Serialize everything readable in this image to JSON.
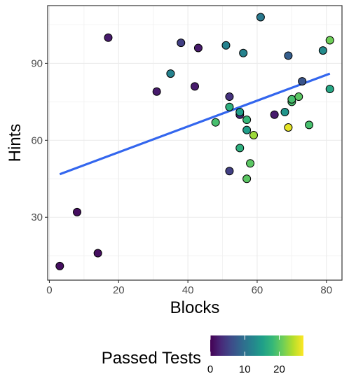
{
  "chart_data": {
    "type": "scatter",
    "xlabel": "Blocks",
    "ylabel": "Hints",
    "xlim": [
      -0.5,
      84.5
    ],
    "ylim": [
      5.5,
      112.5
    ],
    "x_ticks": [
      0,
      20,
      40,
      60,
      80
    ],
    "y_ticks": [
      30,
      60,
      90
    ],
    "grid": true,
    "color_scale": {
      "title": "Passed Tests",
      "palette": "viridis",
      "range": [
        0,
        27
      ],
      "ticks": [
        0,
        10,
        20
      ],
      "colors": [
        "#440154",
        "#482878",
        "#3e4a89",
        "#31688e",
        "#26828e",
        "#1f9e89",
        "#35b779",
        "#6ece58",
        "#b5de2b",
        "#fde725"
      ]
    },
    "trend_line": {
      "x": [
        3,
        81
      ],
      "y": [
        46.8,
        86.0
      ],
      "color": "#3366ee"
    },
    "points": [
      {
        "x": 3,
        "y": 11,
        "c": 1
      },
      {
        "x": 8,
        "y": 32,
        "c": 1
      },
      {
        "x": 14,
        "y": 16,
        "c": 1
      },
      {
        "x": 17,
        "y": 100,
        "c": 2
      },
      {
        "x": 31,
        "y": 79,
        "c": 2
      },
      {
        "x": 35,
        "y": 86,
        "c": 12
      },
      {
        "x": 38,
        "y": 98,
        "c": 5
      },
      {
        "x": 42,
        "y": 81,
        "c": 2
      },
      {
        "x": 43,
        "y": 96,
        "c": 2
      },
      {
        "x": 48,
        "y": 67,
        "c": 19
      },
      {
        "x": 51,
        "y": 97,
        "c": 12
      },
      {
        "x": 52,
        "y": 48,
        "c": 5
      },
      {
        "x": 52,
        "y": 77,
        "c": 4
      },
      {
        "x": 52,
        "y": 73,
        "c": 17
      },
      {
        "x": 55,
        "y": 70,
        "c": 3
      },
      {
        "x": 55,
        "y": 71,
        "c": 15
      },
      {
        "x": 55,
        "y": 57,
        "c": 17
      },
      {
        "x": 56,
        "y": 94,
        "c": 12
      },
      {
        "x": 57,
        "y": 68,
        "c": 18
      },
      {
        "x": 57,
        "y": 64,
        "c": 15
      },
      {
        "x": 57,
        "y": 45,
        "c": 20
      },
      {
        "x": 58,
        "y": 51,
        "c": 20
      },
      {
        "x": 59,
        "y": 62,
        "c": 23
      },
      {
        "x": 61,
        "y": 108,
        "c": 11
      },
      {
        "x": 65,
        "y": 70,
        "c": 2
      },
      {
        "x": 68,
        "y": 71,
        "c": 14
      },
      {
        "x": 69,
        "y": 65,
        "c": 26
      },
      {
        "x": 69,
        "y": 93,
        "c": 8
      },
      {
        "x": 70,
        "y": 75,
        "c": 19
      },
      {
        "x": 70,
        "y": 76,
        "c": 19
      },
      {
        "x": 72,
        "y": 77,
        "c": 20
      },
      {
        "x": 73,
        "y": 83,
        "c": 7
      },
      {
        "x": 75,
        "y": 66,
        "c": 19
      },
      {
        "x": 79,
        "y": 95,
        "c": 13
      },
      {
        "x": 81,
        "y": 99,
        "c": 21
      },
      {
        "x": 81,
        "y": 80,
        "c": 16
      }
    ]
  }
}
